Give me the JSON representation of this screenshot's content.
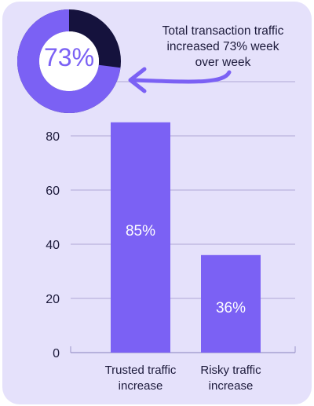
{
  "colors": {
    "card_bg": "#e5e1fb",
    "accent": "#7b61f4",
    "dark": "#15123d",
    "grid": "#9b95c9",
    "text": "#1c1a3b"
  },
  "donut": {
    "value": 73,
    "label": "73%"
  },
  "callout": {
    "line1": "Total transaction traffic",
    "line2": "increased 73% week",
    "line3": "over week",
    "arrow_icon": "curved-arrow-icon"
  },
  "chart_data": {
    "type": "bar",
    "categories": [
      [
        "Trusted traffic",
        "increase"
      ],
      [
        "Risky traffic",
        "increase"
      ]
    ],
    "values": [
      85,
      36
    ],
    "data_labels": [
      "85%",
      "36%"
    ],
    "y_ticks": [
      "0",
      "20",
      "40",
      "60",
      "80"
    ],
    "ylim": [
      0,
      100
    ],
    "grid": true
  }
}
